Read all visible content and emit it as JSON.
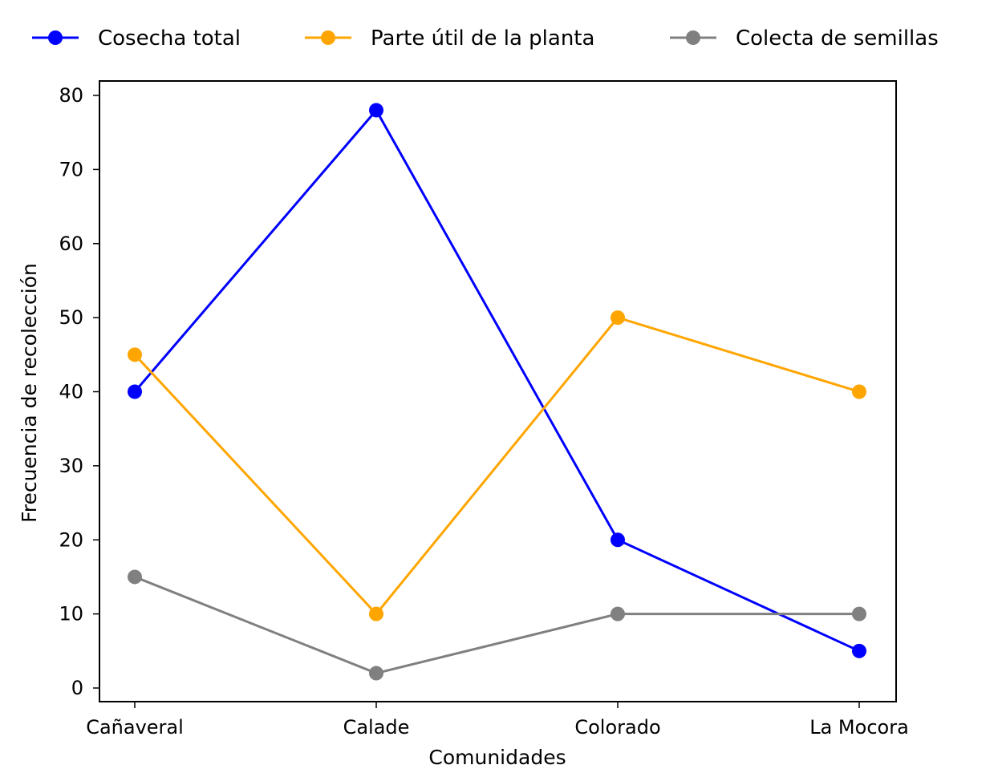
{
  "chart_data": {
    "type": "line",
    "title": "",
    "xlabel": "Comunidades",
    "ylabel": "Frecuencia de recolección",
    "categories": [
      "Cañaveral",
      "Calade",
      "Colorado",
      "La Mocora"
    ],
    "series": [
      {
        "name": "Cosecha total",
        "color": "#0000ff",
        "values": [
          40,
          78,
          20,
          5
        ]
      },
      {
        "name": "Parte útil de la planta",
        "color": "#ffa500",
        "values": [
          45,
          10,
          50,
          40
        ]
      },
      {
        "name": "Colecta de semillas",
        "color": "#808080",
        "values": [
          15,
          2,
          10,
          10
        ]
      }
    ],
    "yticks": [
      0,
      10,
      20,
      30,
      40,
      50,
      60,
      70,
      80
    ],
    "ylim": [
      -2,
      82
    ],
    "grid": false,
    "legend_position": "top, outside plot, horizontal",
    "markers": "circle"
  }
}
